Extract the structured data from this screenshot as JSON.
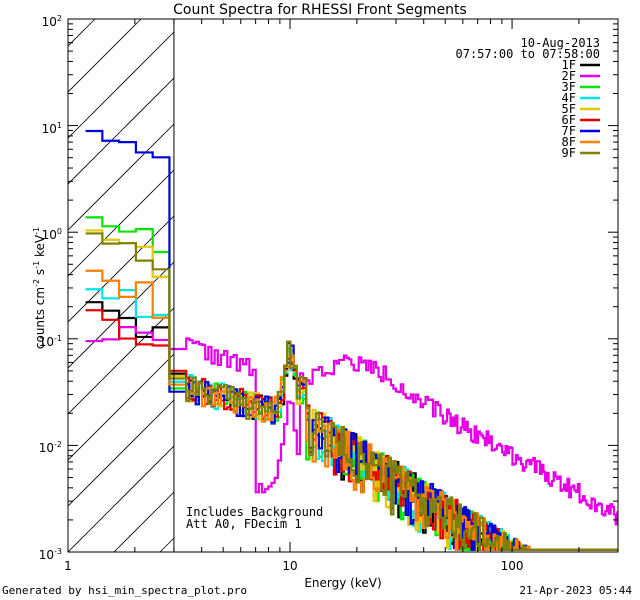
{
  "chart_data": {
    "type": "line",
    "title": "Count Spectra for RHESSI Front Segments",
    "xlabel": "Energy (keV)",
    "ylabel_main": "counts cm",
    "ylabel_s": "s",
    "ylabel_kev": "keV",
    "ylabel_exp": "-2",
    "ylabel_exp2": "-1",
    "ylabel_exp3": "-1",
    "xscale": "log",
    "yscale": "log",
    "xlim": [
      1,
      300
    ],
    "ylim": [
      0.001,
      100
    ],
    "x_tick_labels": [
      {
        "v": 1,
        "t": "1"
      },
      {
        "v": 10,
        "t": "10"
      },
      {
        "v": 100,
        "t": "100"
      }
    ],
    "y_tick_labels": [
      {
        "v": 0.001,
        "b": "10",
        "e": "-3"
      },
      {
        "v": 0.01,
        "b": "10",
        "e": "-2"
      },
      {
        "v": 0.1,
        "b": "10",
        "e": "-1"
      },
      {
        "v": 1,
        "b": "10",
        "e": "0"
      },
      {
        "v": 10,
        "b": "10",
        "e": "1"
      },
      {
        "v": 100,
        "b": "10",
        "e": "2"
      }
    ],
    "date": "10-Aug-2013",
    "time_range": "07:57:00 to 07:58:00",
    "annotations": [
      "Includes Background",
      "Att A0, FDecim 1"
    ],
    "hatched_region": [
      1,
      3
    ],
    "legend_position": "top-right",
    "series": [
      {
        "name": "1F",
        "color": "#000000",
        "scale": 0.29,
        "seed": 11,
        "start": 1.2
      },
      {
        "name": "2F",
        "color": "#e600e6",
        "scale": 0.1,
        "seed": 22,
        "start": 1.2
      },
      {
        "name": "3F",
        "color": "#00e600",
        "scale": 1.8,
        "seed": 33,
        "start": 1.2
      },
      {
        "name": "4F",
        "color": "#00e6e6",
        "scale": 0.38,
        "seed": 44,
        "start": 1.2
      },
      {
        "name": "5F",
        "color": "#e6c800",
        "scale": 1.35,
        "seed": 55,
        "start": 1.2
      },
      {
        "name": "6F",
        "color": "#e60000",
        "scale": 0.24,
        "seed": 66,
        "start": 1.2
      },
      {
        "name": "7F",
        "color": "#0000dc",
        "scale": 11.5,
        "seed": 77,
        "start": 1.2
      },
      {
        "name": "8F",
        "color": "#ff7f00",
        "scale": 0.56,
        "seed": 88,
        "start": 1.2
      },
      {
        "name": "9F",
        "color": "#7f7f00",
        "scale": 1.25,
        "seed": 99,
        "start": 1.2
      }
    ]
  },
  "footer": {
    "generated": "Generated by hsi_min_spectra_plot.pro",
    "timestamp": "21-Apr-2023 05:44"
  }
}
